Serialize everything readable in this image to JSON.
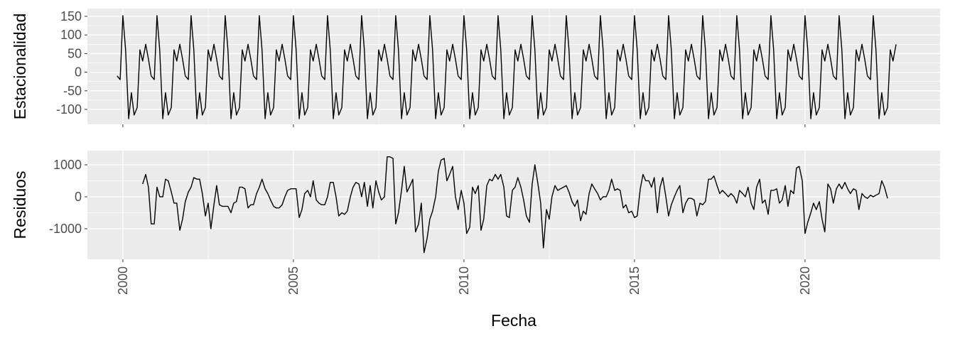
{
  "chart_data": [
    {
      "type": "line",
      "ylabel": "Estacionalidad",
      "x": [
        1999.83,
        1999.92,
        2000,
        2000.08,
        2000.17,
        2000.25,
        2000.33,
        2000.42,
        2000.5,
        2000.58,
        2000.67,
        2000.75,
        2000.83,
        2000.92,
        2001,
        2001.08,
        2001.17,
        2001.25,
        2001.33,
        2001.42,
        2001.5,
        2001.58,
        2001.67,
        2001.75,
        2001.83,
        2001.92,
        2002,
        2002.08,
        2002.17,
        2002.25,
        2002.33,
        2002.42,
        2002.5,
        2002.58,
        2002.67,
        2002.75,
        2002.83,
        2002.92,
        2003,
        2003.08,
        2003.17,
        2003.25,
        2003.33,
        2003.42,
        2003.5,
        2003.58,
        2003.67,
        2003.75,
        2003.83,
        2003.92,
        2004,
        2004.08,
        2004.17,
        2004.25,
        2004.33,
        2004.42,
        2004.5,
        2004.58,
        2004.67,
        2004.75,
        2004.83,
        2004.92,
        2005,
        2005.08,
        2005.17,
        2005.25,
        2005.33,
        2005.42,
        2005.5,
        2005.58,
        2005.67,
        2005.75,
        2005.83,
        2005.92,
        2006,
        2006.08,
        2006.17,
        2006.25,
        2006.33,
        2006.42,
        2006.5,
        2006.58,
        2006.67,
        2006.75,
        2006.83,
        2006.92,
        2007,
        2007.08,
        2007.17,
        2007.25,
        2007.33,
        2007.42,
        2007.5,
        2007.58,
        2007.67,
        2007.75,
        2007.83,
        2007.92,
        2008,
        2008.08,
        2008.17,
        2008.25,
        2008.33,
        2008.42,
        2008.5,
        2008.58,
        2008.67,
        2008.75,
        2008.83,
        2008.92,
        2009,
        2009.08,
        2009.17,
        2009.25,
        2009.33,
        2009.42,
        2009.5,
        2009.58,
        2009.67,
        2009.75,
        2009.83,
        2009.92,
        2010,
        2010.08,
        2010.17,
        2010.25,
        2010.33,
        2010.42,
        2010.5,
        2010.58,
        2010.67,
        2010.75,
        2010.83,
        2010.92,
        2011,
        2011.08,
        2011.17,
        2011.25,
        2011.33,
        2011.42,
        2011.5,
        2011.58,
        2011.67,
        2011.75,
        2011.83,
        2011.92,
        2012,
        2012.08,
        2012.17,
        2012.25,
        2012.33,
        2012.42,
        2012.5,
        2012.58,
        2012.67,
        2012.75,
        2012.83,
        2012.92,
        2013,
        2013.08,
        2013.17,
        2013.25,
        2013.33,
        2013.42,
        2013.5,
        2013.58,
        2013.67,
        2013.75,
        2013.83,
        2013.92,
        2014,
        2014.08,
        2014.17,
        2014.25,
        2014.33,
        2014.42,
        2014.5,
        2014.58,
        2014.67,
        2014.75,
        2014.83,
        2014.92,
        2015,
        2015.08,
        2015.17,
        2015.25,
        2015.33,
        2015.42,
        2015.5,
        2015.58,
        2015.67,
        2015.75,
        2015.83,
        2015.92,
        2016,
        2016.08,
        2016.17,
        2016.25,
        2016.33,
        2016.42,
        2016.5,
        2016.58,
        2016.67,
        2016.75,
        2016.83,
        2016.92,
        2017,
        2017.08,
        2017.17,
        2017.25,
        2017.33,
        2017.42,
        2017.5,
        2017.58,
        2017.67,
        2017.75,
        2017.83,
        2017.92,
        2018,
        2018.08,
        2018.17,
        2018.25,
        2018.33,
        2018.42,
        2018.5,
        2018.58,
        2018.67,
        2018.75,
        2018.83,
        2018.92,
        2019,
        2019.08,
        2019.17,
        2019.25,
        2019.33,
        2019.42,
        2019.5,
        2019.58,
        2019.67,
        2019.75,
        2019.83,
        2019.92,
        2020,
        2020.08,
        2020.17,
        2020.25,
        2020.33,
        2020.42,
        2020.5,
        2020.58,
        2020.67,
        2020.75,
        2020.83,
        2020.92,
        2021,
        2021.08,
        2021.17,
        2021.25,
        2021.33,
        2021.42,
        2021.5,
        2021.58,
        2021.67,
        2021.75,
        2021.83,
        2021.92,
        2022,
        2022.08,
        2022.17,
        2022.25,
        2022.33,
        2022.42,
        2022.5,
        2022.58,
        2022.67
      ],
      "series": [
        {
          "color": "#000000",
          "values": [
            -10,
            -20,
            152,
            60,
            -125,
            -55,
            -115,
            -95,
            60,
            30,
            75,
            35,
            -10,
            -20,
            152,
            60,
            -125,
            -55,
            -115,
            -95,
            60,
            30,
            75,
            35,
            -10,
            -20,
            152,
            60,
            -125,
            -55,
            -115,
            -95,
            60,
            30,
            75,
            35,
            -10,
            -20,
            152,
            60,
            -125,
            -55,
            -115,
            -95,
            60,
            30,
            75,
            35,
            -10,
            -20,
            152,
            60,
            -125,
            -55,
            -115,
            -95,
            60,
            30,
            75,
            35,
            -10,
            -20,
            152,
            60,
            -125,
            -55,
            -115,
            -95,
            60,
            30,
            75,
            35,
            -10,
            -20,
            152,
            60,
            -125,
            -55,
            -115,
            -95,
            60,
            30,
            75,
            35,
            -10,
            -20,
            152,
            60,
            -125,
            -55,
            -115,
            -95,
            60,
            30,
            75,
            35,
            -10,
            -20,
            152,
            60,
            -125,
            -55,
            -115,
            -95,
            60,
            30,
            75,
            35,
            -10,
            -20,
            152,
            60,
            -125,
            -55,
            -115,
            -95,
            60,
            30,
            75,
            35,
            -10,
            -20,
            152,
            60,
            -125,
            -55,
            -115,
            -95,
            60,
            30,
            75,
            35,
            -10,
            -20,
            152,
            60,
            -125,
            -55,
            -115,
            -95,
            60,
            30,
            75,
            35,
            -10,
            -20,
            152,
            60,
            -125,
            -55,
            -115,
            -95,
            60,
            30,
            75,
            35,
            -10,
            -20,
            152,
            60,
            -125,
            -55,
            -115,
            -95,
            60,
            30,
            75,
            35,
            -10,
            -20,
            152,
            60,
            -125,
            -55,
            -115,
            -95,
            60,
            30,
            75,
            35,
            -10,
            -20,
            152,
            60,
            -125,
            -55,
            -115,
            -95,
            60,
            30,
            75,
            35,
            -10,
            -20,
            152,
            60,
            -125,
            -55,
            -115,
            -95,
            60,
            30,
            75,
            35,
            -10,
            -20,
            152,
            60,
            -125,
            -55,
            -115,
            -95,
            60,
            30,
            75,
            35,
            -10,
            -20,
            152,
            60,
            -125,
            -55,
            -115,
            -95,
            60,
            30,
            75,
            35,
            -10,
            -20,
            152,
            60,
            -125,
            -55,
            -115,
            -95,
            60,
            30,
            75,
            35,
            -10,
            -20,
            152,
            60,
            -125,
            -55,
            -115,
            -95,
            60,
            30,
            75,
            35,
            -10,
            -20,
            152,
            60,
            -125,
            -55,
            -115,
            -95,
            60,
            30,
            75,
            35,
            -10,
            -20,
            152,
            60,
            -125,
            -55,
            -115,
            -95,
            60,
            30,
            75
          ]
        }
      ],
      "xlim": [
        1998.96,
        2023.96
      ],
      "xticks": [
        2000,
        2005,
        2010,
        2015,
        2020
      ],
      "ylim": [
        -140,
        171
      ],
      "yticks": [
        -100,
        -50,
        0,
        50,
        100,
        150
      ],
      "grid": true
    },
    {
      "type": "line",
      "ylabel": "Residuos",
      "xlabel": "Fecha",
      "x": [
        1999.83,
        1999.92,
        2000,
        2000.08,
        2000.17,
        2000.25,
        2000.33,
        2000.42,
        2000.5,
        2000.58,
        2000.67,
        2000.75,
        2000.83,
        2000.92,
        2001,
        2001.08,
        2001.17,
        2001.25,
        2001.33,
        2001.42,
        2001.5,
        2001.58,
        2001.67,
        2001.75,
        2001.83,
        2001.92,
        2002,
        2002.08,
        2002.17,
        2002.25,
        2002.33,
        2002.42,
        2002.5,
        2002.58,
        2002.67,
        2002.75,
        2002.83,
        2002.92,
        2003,
        2003.08,
        2003.17,
        2003.25,
        2003.33,
        2003.42,
        2003.5,
        2003.58,
        2003.67,
        2003.75,
        2003.83,
        2003.92,
        2004,
        2004.08,
        2004.17,
        2004.25,
        2004.33,
        2004.42,
        2004.5,
        2004.58,
        2004.67,
        2004.75,
        2004.83,
        2004.92,
        2005,
        2005.08,
        2005.17,
        2005.25,
        2005.33,
        2005.42,
        2005.5,
        2005.58,
        2005.67,
        2005.75,
        2005.83,
        2005.92,
        2006,
        2006.08,
        2006.17,
        2006.25,
        2006.33,
        2006.42,
        2006.5,
        2006.58,
        2006.67,
        2006.75,
        2006.83,
        2006.92,
        2007,
        2007.08,
        2007.17,
        2007.25,
        2007.33,
        2007.42,
        2007.5,
        2007.58,
        2007.67,
        2007.75,
        2007.83,
        2007.92,
        2008,
        2008.08,
        2008.17,
        2008.25,
        2008.33,
        2008.42,
        2008.5,
        2008.58,
        2008.67,
        2008.75,
        2008.83,
        2008.92,
        2009,
        2009.08,
        2009.17,
        2009.25,
        2009.33,
        2009.42,
        2009.5,
        2009.58,
        2009.67,
        2009.75,
        2009.83,
        2009.92,
        2010,
        2010.08,
        2010.17,
        2010.25,
        2010.33,
        2010.42,
        2010.5,
        2010.58,
        2010.67,
        2010.75,
        2010.83,
        2010.92,
        2011,
        2011.08,
        2011.17,
        2011.25,
        2011.33,
        2011.42,
        2011.5,
        2011.58,
        2011.67,
        2011.75,
        2011.83,
        2011.92,
        2012,
        2012.08,
        2012.17,
        2012.25,
        2012.33,
        2012.42,
        2012.5,
        2012.58,
        2012.67,
        2012.75,
        2012.83,
        2012.92,
        2013,
        2013.08,
        2013.17,
        2013.25,
        2013.33,
        2013.42,
        2013.5,
        2013.58,
        2013.67,
        2013.75,
        2013.83,
        2013.92,
        2014,
        2014.08,
        2014.17,
        2014.25,
        2014.33,
        2014.42,
        2014.5,
        2014.58,
        2014.67,
        2014.75,
        2014.83,
        2014.92,
        2015,
        2015.08,
        2015.17,
        2015.25,
        2015.33,
        2015.42,
        2015.5,
        2015.58,
        2015.67,
        2015.75,
        2015.83,
        2015.92,
        2016,
        2016.08,
        2016.17,
        2016.25,
        2016.33,
        2016.42,
        2016.5,
        2016.58,
        2016.67,
        2016.75,
        2016.83,
        2016.92,
        2017,
        2017.08,
        2017.17,
        2017.25,
        2017.33,
        2017.42,
        2017.5,
        2017.58,
        2017.67,
        2017.75,
        2017.83,
        2017.92,
        2018,
        2018.08,
        2018.17,
        2018.25,
        2018.33,
        2018.42,
        2018.5,
        2018.58,
        2018.67,
        2018.75,
        2018.83,
        2018.92,
        2019,
        2019.08,
        2019.17,
        2019.25,
        2019.33,
        2019.42,
        2019.5,
        2019.58,
        2019.67,
        2019.75,
        2019.83,
        2019.92,
        2020,
        2020.08,
        2020.17,
        2020.25,
        2020.33,
        2020.42,
        2020.5,
        2020.58,
        2020.67,
        2020.75,
        2020.83,
        2020.92,
        2021,
        2021.08,
        2021.17,
        2021.25,
        2021.33,
        2021.42,
        2021.5,
        2021.58,
        2021.67,
        2021.75,
        2021.83,
        2021.92,
        2022,
        2022.08,
        2022.17,
        2022.25,
        2022.33,
        2022.42,
        2022.5,
        2022.58,
        2022.67
      ],
      "series": [
        {
          "color": "#000000",
          "values": [
            null,
            null,
            null,
            null,
            null,
            null,
            null,
            null,
            null,
            400,
            700,
            300,
            -850,
            -850,
            300,
            0,
            0,
            550,
            500,
            150,
            -200,
            -200,
            -1050,
            -700,
            -150,
            150,
            300,
            600,
            550,
            550,
            100,
            -600,
            -200,
            -1000,
            -250,
            350,
            -250,
            -300,
            -300,
            -300,
            -500,
            -200,
            -150,
            300,
            300,
            250,
            -350,
            -250,
            -250,
            100,
            300,
            550,
            250,
            100,
            -100,
            -300,
            -350,
            -350,
            -250,
            0,
            200,
            250,
            250,
            250,
            -650,
            -400,
            100,
            200,
            0,
            500,
            -100,
            -200,
            -250,
            -250,
            0,
            450,
            450,
            0,
            -600,
            -500,
            -550,
            -450,
            0,
            300,
            450,
            400,
            0,
            450,
            -300,
            350,
            -350,
            500,
            150,
            -100,
            0,
            1250,
            1250,
            1200,
            -850,
            -500,
            200,
            950,
            150,
            350,
            550,
            -1100,
            -850,
            -200,
            -1750,
            -1300,
            -700,
            -450,
            0,
            800,
            1150,
            1200,
            500,
            700,
            950,
            0,
            -400,
            200,
            -200,
            -1150,
            -950,
            300,
            100,
            350,
            -1050,
            -700,
            350,
            550,
            500,
            700,
            550,
            700,
            300,
            -600,
            -650,
            200,
            300,
            600,
            300,
            -100,
            -600,
            -800,
            400,
            1000,
            400,
            -200,
            -1600,
            -400,
            -700,
            0,
            350,
            200,
            250,
            300,
            350,
            150,
            -150,
            -300,
            -100,
            -750,
            -450,
            -550,
            100,
            400,
            250,
            100,
            -100,
            0,
            0,
            200,
            550,
            200,
            250,
            200,
            -350,
            -250,
            -500,
            -450,
            -650,
            -600,
            250,
            700,
            500,
            500,
            300,
            600,
            -500,
            300,
            600,
            0,
            -600,
            -250,
            0,
            200,
            350,
            -500,
            -200,
            -50,
            -50,
            -100,
            -600,
            -200,
            -250,
            -150,
            550,
            550,
            650,
            350,
            100,
            200,
            100,
            0,
            100,
            0,
            -200,
            200,
            100,
            0,
            300,
            -200,
            -400,
            300,
            550,
            -200,
            -100,
            -550,
            200,
            200,
            250,
            -200,
            -100,
            350,
            -300,
            200,
            100,
            900,
            950,
            500,
            -1150,
            -800,
            -500,
            -200,
            -400,
            -150,
            -700,
            -1100,
            400,
            250,
            -200,
            250,
            400,
            250,
            450,
            250,
            100,
            250,
            200,
            -400,
            100,
            0,
            -50,
            50,
            0,
            50,
            100,
            500,
            300,
            -50,
            null,
            null,
            null
          ]
        }
      ],
      "xlim": [
        1998.96,
        2023.96
      ],
      "xticks": [
        2000,
        2005,
        2010,
        2015,
        2020
      ],
      "ylim": [
        -1956,
        1444
      ],
      "yticks": [
        -1000,
        0,
        1000
      ],
      "grid": true
    }
  ]
}
